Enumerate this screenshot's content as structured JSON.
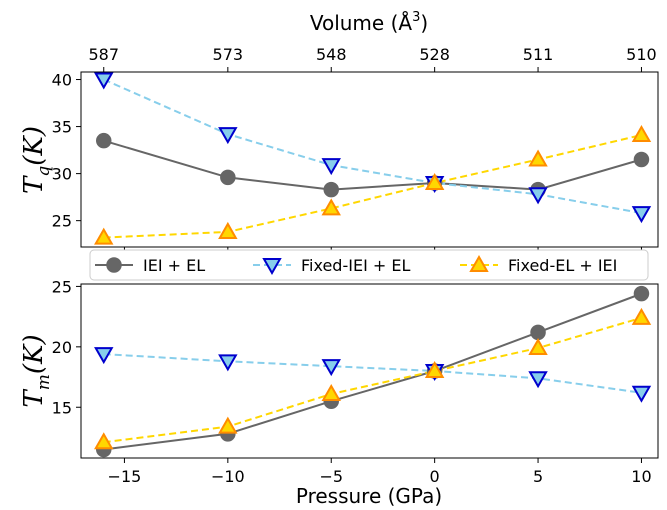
{
  "chart_data": [
    {
      "type": "line",
      "panel": "top",
      "top_axis_title": "Volume (Å",
      "top_axis_title_sup": "3",
      "top_axis_title_close": ")",
      "top_tick_labels": [
        "587",
        "573",
        "548",
        "528",
        "511",
        "510"
      ],
      "ylabel_main": "T",
      "ylabel_sub": "q",
      "ylabel_unit": "(K)",
      "x": [
        -16,
        -10,
        -5,
        0,
        5,
        10
      ],
      "ylim": [
        22.2,
        40.8
      ],
      "yticks": [
        25,
        30,
        35,
        40
      ],
      "series": [
        {
          "name": "IEI + EL",
          "values": [
            33.5,
            29.6,
            28.3,
            29.0,
            28.3,
            31.5
          ]
        },
        {
          "name": "Fixed-IEI + EL",
          "values": [
            40.0,
            34.2,
            30.9,
            29.0,
            27.8,
            25.8
          ]
        },
        {
          "name": "Fixed-EL + IEI",
          "values": [
            23.2,
            23.8,
            26.3,
            29.0,
            31.5,
            34.1
          ]
        }
      ]
    },
    {
      "type": "line",
      "panel": "bottom",
      "xlabel": "Pressure (GPa)",
      "ylabel_main": "T",
      "ylabel_sub": "m",
      "ylabel_unit": "(K)",
      "x": [
        -16,
        -10,
        -5,
        0,
        5,
        10
      ],
      "xticks": [
        -15,
        -10,
        -5,
        0,
        5,
        10
      ],
      "xlim": [
        -17.1,
        10.8
      ],
      "ylim": [
        10.8,
        25.2
      ],
      "yticks": [
        15,
        20,
        25
      ],
      "series": [
        {
          "name": "IEI + EL",
          "values": [
            11.5,
            12.8,
            15.5,
            18.0,
            21.2,
            24.4
          ]
        },
        {
          "name": "Fixed-IEI + EL",
          "values": [
            19.4,
            18.8,
            18.4,
            18.0,
            17.4,
            16.2
          ]
        },
        {
          "name": "Fixed-EL + IEI",
          "values": [
            12.1,
            13.4,
            16.1,
            18.0,
            19.9,
            22.4
          ]
        }
      ]
    }
  ],
  "legend": {
    "location": "between panels",
    "entries": [
      {
        "label": "IEI + EL",
        "marker": "circle",
        "line_color": "#666666",
        "marker_fill": "#666666",
        "marker_edge": "#666666",
        "dashed": false
      },
      {
        "label": "Fixed-IEI + EL",
        "marker": "triangle-down",
        "line_color": "#87ceeb",
        "marker_fill": "#87ceeb",
        "marker_edge": "#0000cd",
        "dashed": true
      },
      {
        "label": "Fixed-EL + IEI",
        "marker": "triangle-up",
        "line_color": "#ffd700",
        "marker_fill": "#ffd700",
        "marker_edge": "#ff8c00",
        "dashed": true
      }
    ]
  },
  "colors": {
    "iei_el": "#666666",
    "fixed_iei_line": "#87ceeb",
    "fixed_iei_edge": "#0000cd",
    "fixed_el_line": "#ffd700",
    "fixed_el_edge": "#ff8c00"
  }
}
